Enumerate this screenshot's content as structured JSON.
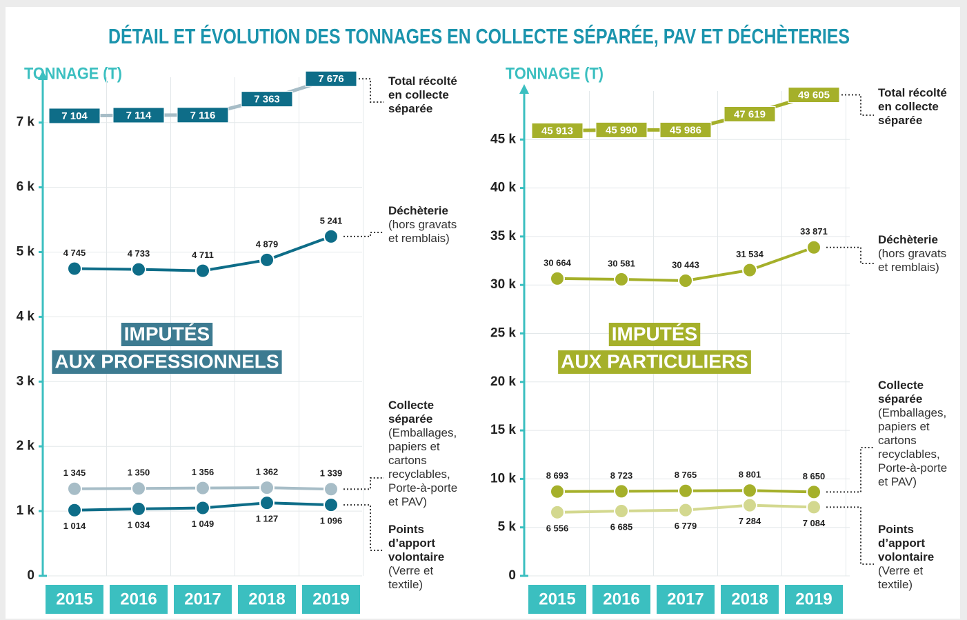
{
  "title": "DÉTAIL  ET ÉVOLUTION DES TONNAGES EN COLLECTE SÉPARÉE, PAV ET DÉCHÈTERIES",
  "chart_data": [
    {
      "type": "line",
      "y_label": "TONNAGE (T)",
      "categories": [
        "2015",
        "2016",
        "2017",
        "2018",
        "2019"
      ],
      "ylim": [
        0,
        7700
      ],
      "yticks": [
        0,
        {
          "value": 1000,
          "label": "1 k"
        },
        {
          "value": 2000,
          "label": "2 k"
        },
        {
          "value": 3000,
          "label": "3 k"
        },
        {
          "value": 4000,
          "label": "4 k"
        },
        {
          "value": 5000,
          "label": "5 k"
        },
        {
          "value": 6000,
          "label": "6 k"
        },
        {
          "value": 7000,
          "label": "7 k"
        }
      ],
      "grid": true,
      "annotation": [
        "IMPUTÉS",
        "AUX PROFESSIONNELS"
      ],
      "annotation_color": "#3d7b91",
      "series": [
        {
          "name": "Total récolté en collecte séparée",
          "color": "#0e6d88",
          "line_color": "#a7bdc7",
          "values": [
            7104,
            7114,
            7116,
            7363,
            7676
          ],
          "value_labels": [
            "7 104",
            "7 114",
            "7 116",
            "7 363",
            "7 676"
          ]
        },
        {
          "name": "Déchèterie",
          "detail": "(hors gravats et remblais)",
          "color": "#0e6d88",
          "values": [
            4745,
            4733,
            4711,
            4879,
            5241
          ],
          "value_labels": [
            "4 745",
            "4 733",
            "4 711",
            "4 879",
            "5 241"
          ]
        },
        {
          "name": "Collecte séparée",
          "detail": "(Emballages, papiers et cartons recyclables, Porte-à-porte et PAV)",
          "color": "#a7bdc7",
          "values": [
            1345,
            1350,
            1356,
            1362,
            1339
          ],
          "value_labels": [
            "1 345",
            "1 350",
            "1 356",
            "1 362",
            "1 339"
          ]
        },
        {
          "name": "Points d’apport volontaire",
          "detail": "(Verre et textile)",
          "color": "#0e6d88",
          "values": [
            1014,
            1034,
            1049,
            1127,
            1096
          ],
          "value_labels": [
            "1 014",
            "1 034",
            "1 049",
            "1 127",
            "1 096"
          ]
        }
      ]
    },
    {
      "type": "line",
      "y_label": "TONNAGE (T)",
      "categories": [
        "2015",
        "2016",
        "2017",
        "2018",
        "2019"
      ],
      "ylim": [
        0,
        50000
      ],
      "yticks": [
        0,
        {
          "value": 5000,
          "label": "5 k"
        },
        {
          "value": 10000,
          "label": "10 k"
        },
        {
          "value": 15000,
          "label": "15 k"
        },
        {
          "value": 20000,
          "label": "20 k"
        },
        {
          "value": 25000,
          "label": "25 k"
        },
        {
          "value": 30000,
          "label": "30 k"
        },
        {
          "value": 35000,
          "label": "35 k"
        },
        {
          "value": 40000,
          "label": "40 k"
        },
        {
          "value": 45000,
          "label": "45 k"
        }
      ],
      "grid": true,
      "annotation": [
        "IMPUTÉS",
        "AUX PARTICULIERS"
      ],
      "annotation_color": "#a5b02a",
      "series": [
        {
          "name": "Total récolté en collecte séparée",
          "color": "#a5b02a",
          "values": [
            45913,
            45990,
            45986,
            47619,
            49605
          ],
          "value_labels": [
            "45 913",
            "45 990",
            "45 986",
            "47 619",
            "49 605"
          ]
        },
        {
          "name": "Déchèterie",
          "detail": "(hors gravats et remblais)",
          "color": "#a5b02a",
          "values": [
            30664,
            30581,
            30443,
            31534,
            33871
          ],
          "value_labels": [
            "30 664",
            "30 581",
            "30 443",
            "31 534",
            "33 871"
          ]
        },
        {
          "name": "Collecte séparée",
          "detail": "(Emballages, papiers et cartons recyclables, Porte-à-porte et PAV)",
          "color": "#a5b02a",
          "values": [
            8693,
            8723,
            8765,
            8801,
            8650
          ],
          "value_labels": [
            "8 693",
            "8 723",
            "8 765",
            "8 801",
            "8 650"
          ]
        },
        {
          "name": "Points d’apport volontaire",
          "detail": "(Verre et textile)",
          "color": "#d3d88f",
          "values": [
            6556,
            6685,
            6779,
            7284,
            7084
          ],
          "value_labels": [
            "6 556",
            "6 685",
            "6 779",
            "7 284",
            "7 084"
          ]
        }
      ]
    }
  ]
}
